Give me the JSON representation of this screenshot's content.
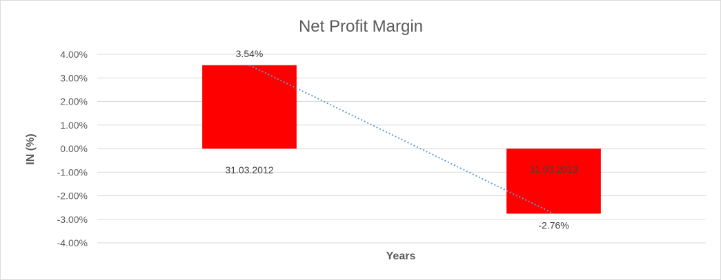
{
  "chart_data": {
    "type": "bar",
    "title": "Net Profit Margin",
    "xlabel": "Years",
    "ylabel": "IN (%)",
    "categories": [
      "31.03.2012",
      "31.03.2013"
    ],
    "values": [
      3.54,
      -2.76
    ],
    "data_labels": [
      "3.54%",
      "-2.76%"
    ],
    "ylim": [
      -4,
      4
    ],
    "yticks": [
      4,
      3,
      2,
      1,
      0,
      -1,
      -2,
      -3,
      -4
    ],
    "ytick_labels": [
      "4.00%",
      "3.00%",
      "2.00%",
      "1.00%",
      "0.00%",
      "-1.00%",
      "-2.00%",
      "-3.00%",
      "-4.00%"
    ],
    "bar_color": "#ff0000",
    "trendline": {
      "type": "linear",
      "style": "dotted",
      "color": "#5b9bd5"
    },
    "grid": true,
    "legend": "none"
  }
}
